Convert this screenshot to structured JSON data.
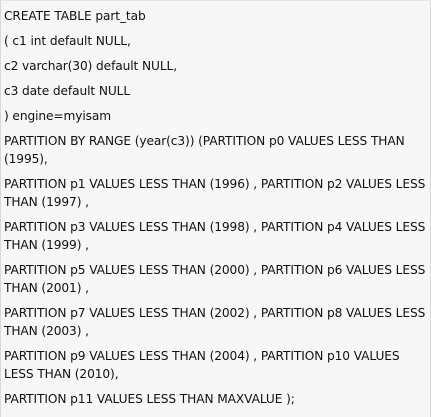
{
  "code": {
    "lines": [
      "CREATE TABLE part_tab",
      "( c1 int default NULL,",
      "c2 varchar(30) default NULL,",
      "c3 date default NULL",
      ") engine=myisam",
      "PARTITION BY RANGE (year(c3)) (PARTITION p0 VALUES LESS THAN (1995),",
      "PARTITION p1 VALUES LESS THAN (1996) , PARTITION p2 VALUES LESS THAN (1997) ,",
      "PARTITION p3 VALUES LESS THAN (1998) , PARTITION p4 VALUES LESS THAN (1999) ,",
      "PARTITION p5 VALUES LESS THAN (2000) , PARTITION p6 VALUES LESS THAN (2001) ,",
      "PARTITION p7 VALUES LESS THAN (2002) , PARTITION p8 VALUES LESS THAN (2003) ,",
      "PARTITION p9 VALUES LESS THAN (2004) , PARTITION p10 VALUES LESS THAN (2010),",
      "PARTITION p11 VALUES LESS THAN MAXVALUE );"
    ]
  }
}
